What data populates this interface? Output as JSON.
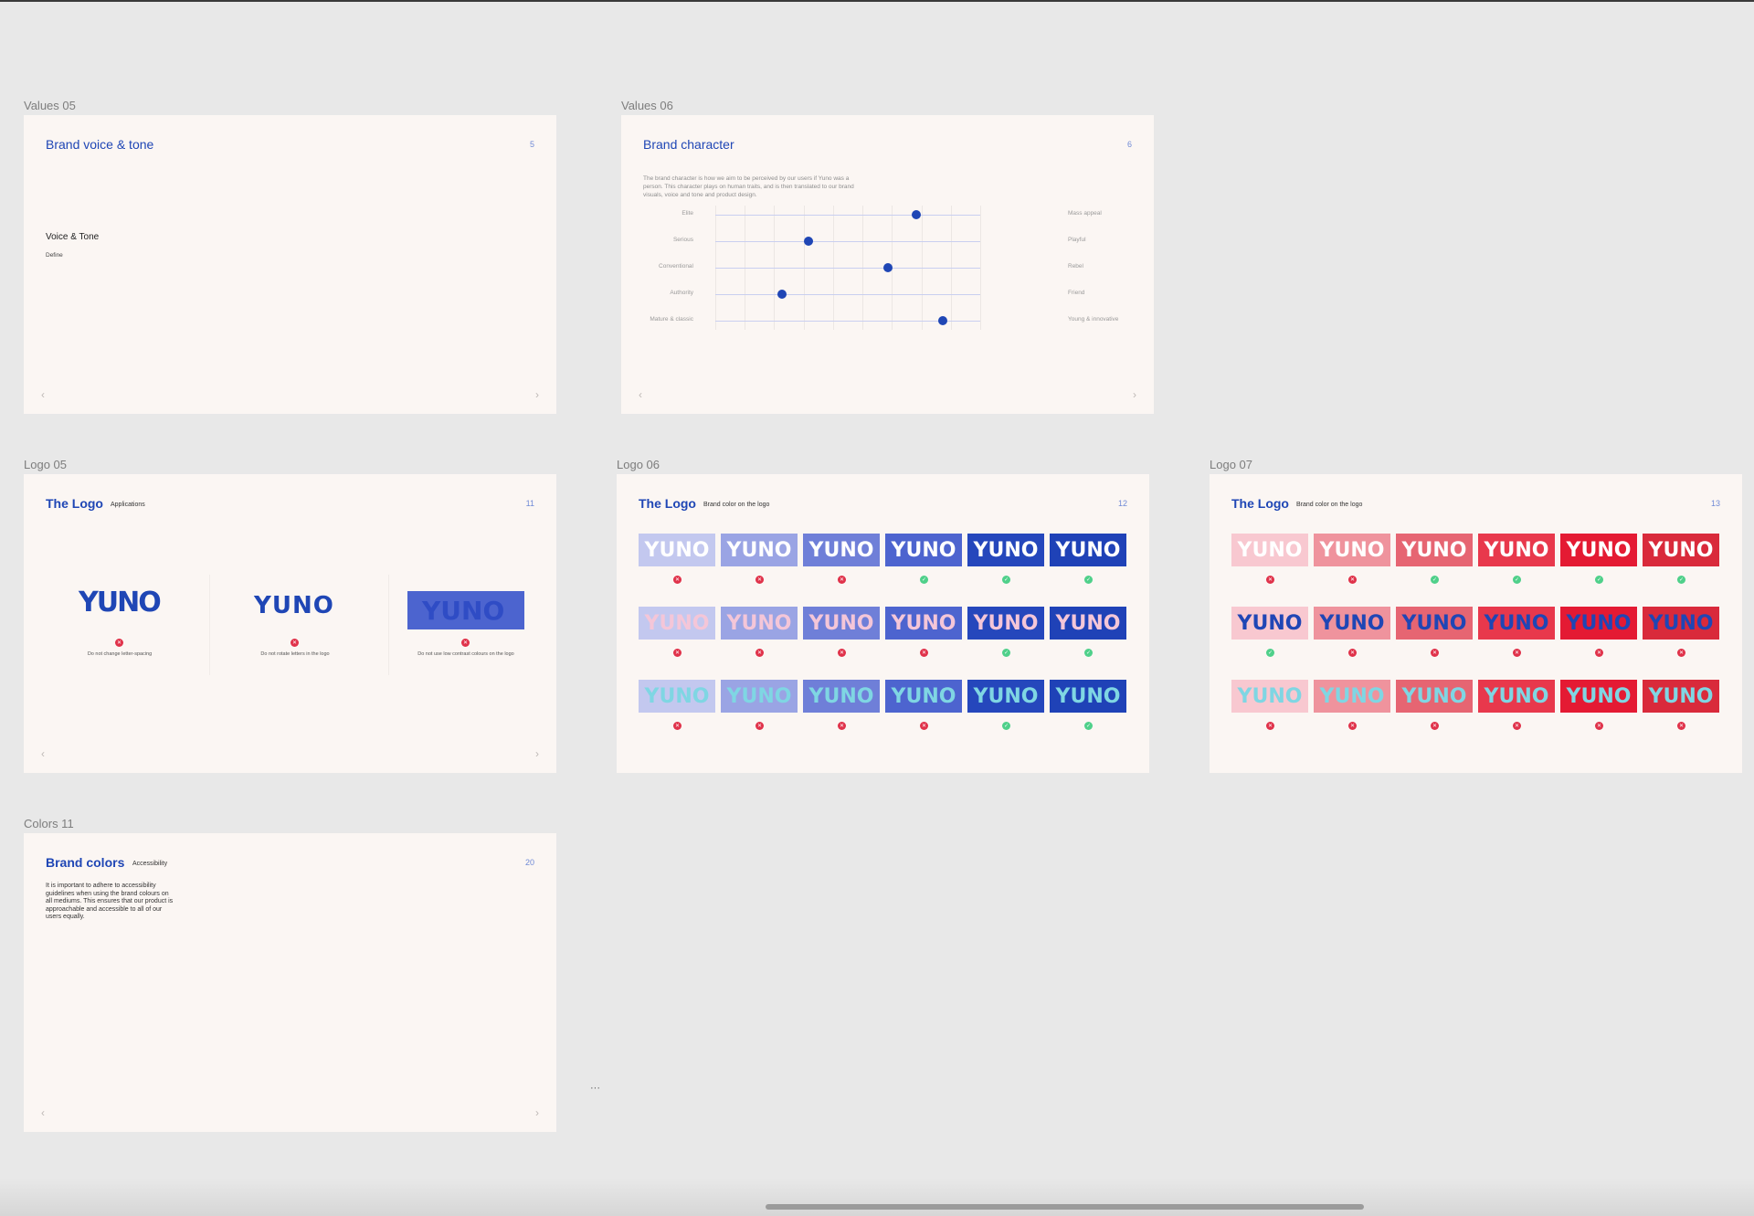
{
  "frames": {
    "values05": {
      "label": "Values 05",
      "title": "Brand voice & tone",
      "num": "5",
      "heading": "Voice & Tone",
      "sub": "Define"
    },
    "values06": {
      "label": "Values 06",
      "title": "Brand character",
      "num": "6",
      "intro": "The brand character is how we aim to be perceived by our users if Yuno was a person. This character plays on human traits, and is then translated to our brand visuals, voice and tone and product design.",
      "traits": [
        {
          "left": "Elite",
          "right": "Mass appeal",
          "value": 0.76
        },
        {
          "left": "Serious",
          "right": "Playful",
          "value": 0.35
        },
        {
          "left": "Conventional",
          "right": "Rebel",
          "value": 0.65
        },
        {
          "left": "Authority",
          "right": "Friend",
          "value": 0.25
        },
        {
          "left": "Mature & classic",
          "right": "Young & innovative",
          "value": 0.86
        }
      ]
    },
    "logo05": {
      "label": "Logo 05",
      "title": "The Logo",
      "sub": "Applications",
      "num": "11",
      "logo_text": "YUNO",
      "captions": [
        "Do not change letter-spacing",
        "Do not rotate letters in the logo",
        "Do not use low contrast colours on the logo"
      ]
    },
    "logo06": {
      "label": "Logo 06",
      "title": "The Logo",
      "sub": "Brand color on the logo",
      "num": "12",
      "logo_text": "YUNO"
    },
    "logo07": {
      "label": "Logo 07",
      "title": "The Logo",
      "sub": "Brand color on the logo",
      "num": "13",
      "logo_text": "YUNO"
    },
    "colors11": {
      "label": "Colors 11",
      "title": "Brand colors",
      "sub": "Accessibility",
      "num": "20",
      "text": "It is important to adhere to accessibility guidelines when using the brand colours on all mediums. This ensures that our product is approachable and accessible to all of our users equally."
    }
  },
  "palette": {
    "blue_tiles": [
      "#c3c8ef",
      "#9aa4e4",
      "#6f7fd8",
      "#4d64cf",
      "#2547bc",
      "#1f42b7"
    ],
    "red_tiles": [
      "#f8c8d0",
      "#ef939d",
      "#e66572",
      "#e8384c",
      "#e41a33",
      "#d92a3b"
    ],
    "blue_rows": [
      {
        "text_colors": [
          "#ffffff",
          "#ffffff",
          "#ffffff",
          "#ffffff",
          "#ffffff",
          "#ffffff"
        ],
        "marks": [
          "bad",
          "bad",
          "bad",
          "good",
          "good",
          "good"
        ]
      },
      {
        "text_colors": [
          "#f4c6d8",
          "#f4c6d8",
          "#f4c6d8",
          "#f4c6d8",
          "#f4c6d8",
          "#f4c6d8"
        ],
        "marks": [
          "bad",
          "bad",
          "bad",
          "bad",
          "good",
          "good"
        ]
      },
      {
        "text_colors": [
          "#7fd6e3",
          "#7fd6e3",
          "#7fd6e3",
          "#7fd6e3",
          "#7fd6e3",
          "#7fd6e3"
        ],
        "marks": [
          "bad",
          "bad",
          "bad",
          "bad",
          "good",
          "good"
        ]
      }
    ],
    "red_rows": [
      {
        "text_colors": [
          "#ffffff",
          "#ffffff",
          "#ffffff",
          "#ffffff",
          "#ffffff",
          "#ffffff"
        ],
        "marks": [
          "bad",
          "bad",
          "good",
          "good",
          "good",
          "good"
        ]
      },
      {
        "text_colors": [
          "#1f46b5",
          "#1f46b5",
          "#1f46b5",
          "#1f46b5",
          "#1f46b5",
          "#1f46b5"
        ],
        "marks": [
          "good",
          "bad",
          "bad",
          "bad",
          "bad",
          "bad"
        ]
      },
      {
        "text_colors": [
          "#7fd6e3",
          "#7fd6e3",
          "#7fd6e3",
          "#7fd6e3",
          "#7fd6e3",
          "#7fd6e3"
        ],
        "marks": [
          "bad",
          "bad",
          "bad",
          "bad",
          "bad",
          "bad"
        ]
      }
    ],
    "accent": "#1f46b5"
  },
  "canvas": {
    "nav_prev": "‹",
    "nav_next": "›",
    "more": "···"
  }
}
